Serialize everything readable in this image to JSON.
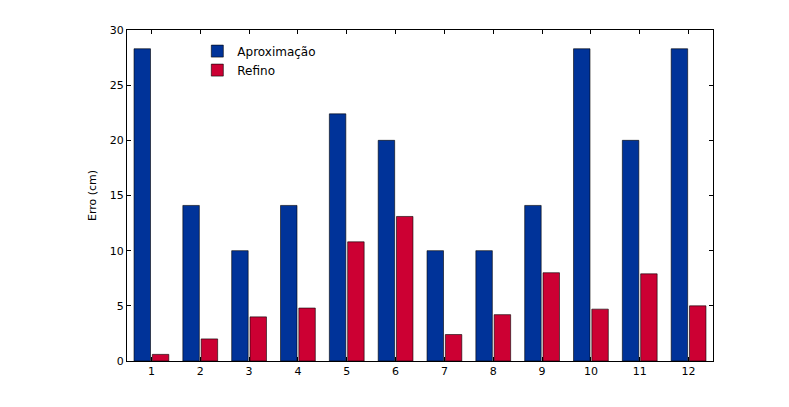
{
  "chart_data": {
    "type": "bar",
    "y_label": "Erro (cm)",
    "categories": [
      "1",
      "2",
      "3",
      "4",
      "5",
      "6",
      "7",
      "8",
      "9",
      "10",
      "11",
      "12"
    ],
    "series": [
      {
        "name": "Aproximação",
        "color": "#003399",
        "values": [
          28.3,
          14.1,
          10,
          14.1,
          22.4,
          20,
          10,
          10,
          14.1,
          28.3,
          20,
          28.3
        ]
      },
      {
        "name": "Refino",
        "color": "#cc0033",
        "values": [
          0.6,
          2.0,
          4.0,
          4.8,
          10.8,
          13.1,
          2.4,
          4.2,
          8.0,
          4.7,
          7.9,
          5.0
        ]
      }
    ],
    "ylim": [
      0,
      30
    ],
    "yticks": [
      0,
      5,
      10,
      15,
      20,
      25,
      30
    ],
    "grid": false,
    "legend": "upper left"
  }
}
